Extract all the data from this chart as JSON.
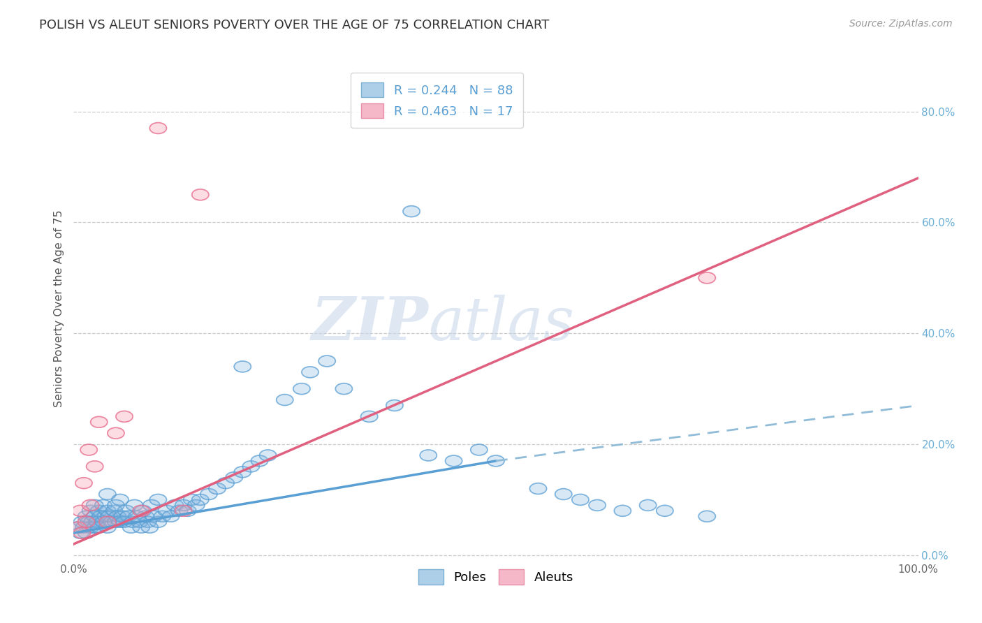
{
  "title": "POLISH VS ALEUT SENIORS POVERTY OVER THE AGE OF 75 CORRELATION CHART",
  "source_text": "Source: ZipAtlas.com",
  "ylabel": "Seniors Poverty Over the Age of 75",
  "xlim": [
    0.0,
    1.0
  ],
  "ylim": [
    -0.01,
    0.9
  ],
  "x_ticks": [
    0.0,
    0.1,
    0.2,
    0.3,
    0.4,
    0.5,
    0.6,
    0.7,
    0.8,
    0.9,
    1.0
  ],
  "x_tick_labels": [
    "0.0%",
    "",
    "",
    "",
    "",
    "",
    "",
    "",
    "",
    "",
    "100.0%"
  ],
  "y_ticks_right": [
    0.0,
    0.2,
    0.4,
    0.6,
    0.8
  ],
  "y_tick_labels_right": [
    "0.0%",
    "20.0%",
    "40.0%",
    "60.0%",
    "80.0%"
  ],
  "poles_color": "#82b4e0",
  "aleuts_color": "#f4a0b0",
  "poles_edge_color": "#5a9fd4",
  "aleuts_edge_color": "#e87090",
  "watermark_zip": "ZIP",
  "watermark_atlas": "atlas",
  "background_color": "#ffffff",
  "grid_color": "#cccccc",
  "poles_trend_x0": 0.0,
  "poles_trend_x1": 1.0,
  "poles_trend_y0": 0.04,
  "poles_trend_y_solid_end_x": 0.5,
  "poles_trend_y_solid_end_y": 0.17,
  "poles_trend_y1": 0.27,
  "aleuts_trend_x0": 0.0,
  "aleuts_trend_x1": 1.0,
  "aleuts_trend_y0": 0.02,
  "aleuts_trend_y1": 0.68,
  "poles_x": [
    0.005,
    0.008,
    0.01,
    0.012,
    0.015,
    0.015,
    0.018,
    0.02,
    0.02,
    0.022,
    0.025,
    0.025,
    0.025,
    0.028,
    0.03,
    0.03,
    0.032,
    0.035,
    0.035,
    0.038,
    0.04,
    0.04,
    0.04,
    0.042,
    0.045,
    0.048,
    0.05,
    0.05,
    0.052,
    0.055,
    0.055,
    0.058,
    0.06,
    0.062,
    0.065,
    0.068,
    0.07,
    0.072,
    0.075,
    0.078,
    0.08,
    0.082,
    0.085,
    0.088,
    0.09,
    0.092,
    0.095,
    0.1,
    0.1,
    0.105,
    0.11,
    0.115,
    0.12,
    0.125,
    0.13,
    0.135,
    0.14,
    0.145,
    0.15,
    0.16,
    0.17,
    0.18,
    0.19,
    0.2,
    0.21,
    0.22,
    0.23,
    0.25,
    0.27,
    0.28,
    0.3,
    0.32,
    0.35,
    0.38,
    0.4,
    0.42,
    0.45,
    0.48,
    0.5,
    0.2,
    0.55,
    0.58,
    0.6,
    0.62,
    0.65,
    0.68,
    0.7,
    0.75
  ],
  "poles_y": [
    0.05,
    0.04,
    0.06,
    0.05,
    0.07,
    0.04,
    0.06,
    0.05,
    0.08,
    0.06,
    0.05,
    0.07,
    0.09,
    0.06,
    0.05,
    0.08,
    0.07,
    0.06,
    0.09,
    0.07,
    0.05,
    0.08,
    0.11,
    0.07,
    0.06,
    0.08,
    0.06,
    0.09,
    0.07,
    0.06,
    0.1,
    0.07,
    0.06,
    0.08,
    0.07,
    0.05,
    0.06,
    0.09,
    0.07,
    0.06,
    0.05,
    0.08,
    0.07,
    0.06,
    0.05,
    0.09,
    0.07,
    0.06,
    0.1,
    0.07,
    0.08,
    0.07,
    0.09,
    0.08,
    0.09,
    0.08,
    0.1,
    0.09,
    0.1,
    0.11,
    0.12,
    0.13,
    0.14,
    0.15,
    0.16,
    0.17,
    0.18,
    0.28,
    0.3,
    0.33,
    0.35,
    0.3,
    0.25,
    0.27,
    0.62,
    0.18,
    0.17,
    0.19,
    0.17,
    0.34,
    0.12,
    0.11,
    0.1,
    0.09,
    0.08,
    0.09,
    0.08,
    0.07
  ],
  "aleuts_x": [
    0.005,
    0.008,
    0.01,
    0.012,
    0.015,
    0.018,
    0.02,
    0.025,
    0.03,
    0.04,
    0.05,
    0.06,
    0.08,
    0.1,
    0.13,
    0.15,
    0.75
  ],
  "aleuts_y": [
    0.05,
    0.08,
    0.04,
    0.13,
    0.06,
    0.19,
    0.09,
    0.16,
    0.24,
    0.06,
    0.22,
    0.25,
    0.08,
    0.77,
    0.08,
    0.65,
    0.5
  ]
}
